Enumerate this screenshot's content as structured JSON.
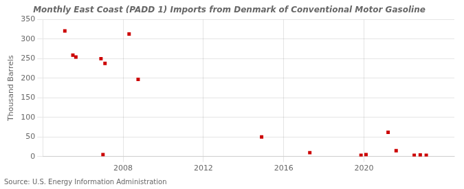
{
  "chart_data": {
    "type": "scatter",
    "title": "Monthly East Coast (PADD 1) Imports from Denmark of Conventional Motor Gasoline",
    "y_label": "Thousand Barrels",
    "annotations": [
      "Source: U.S. Energy Information Administration"
    ],
    "x": [
      2005.1,
      2005.5,
      2005.65,
      2006.9,
      2007.1,
      2007.0,
      2008.3,
      2008.75,
      2014.9,
      2017.3,
      2019.85,
      2020.1,
      2021.2,
      2021.6,
      2022.5,
      2022.8,
      2023.1
    ],
    "values": [
      321,
      259,
      254,
      250,
      238,
      5,
      313,
      197,
      50,
      10,
      3,
      5,
      62,
      15,
      3,
      4,
      3
    ],
    "color": "#cc0000",
    "marker": "square",
    "xlim": [
      2004.0,
      2024.5
    ],
    "xticks": [
      2008,
      2012,
      2016,
      2020
    ],
    "ylim": [
      0,
      350
    ],
    "yticks": [
      0,
      50,
      100,
      150,
      200,
      250,
      300,
      350
    ],
    "grid": true
  }
}
